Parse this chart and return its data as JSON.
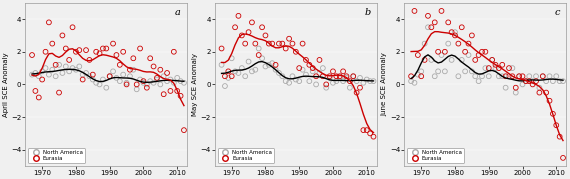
{
  "years": [
    1967,
    1968,
    1969,
    1970,
    1971,
    1972,
    1973,
    1974,
    1975,
    1976,
    1977,
    1978,
    1979,
    1980,
    1981,
    1982,
    1983,
    1984,
    1985,
    1986,
    1987,
    1988,
    1989,
    1990,
    1991,
    1992,
    1993,
    1994,
    1995,
    1996,
    1997,
    1998,
    1999,
    2000,
    2001,
    2002,
    2003,
    2004,
    2005,
    2006,
    2007,
    2008,
    2009,
    2010,
    2011,
    2012
  ],
  "april_na": [
    0.6,
    0.7,
    0.5,
    0.8,
    1.0,
    0.6,
    0.9,
    0.5,
    1.2,
    0.7,
    1.1,
    0.8,
    1.0,
    0.9,
    1.1,
    0.6,
    0.7,
    0.5,
    0.3,
    0.1,
    0.0,
    0.3,
    -0.2,
    0.5,
    0.8,
    0.4,
    0.2,
    0.6,
    0.1,
    0.5,
    0.9,
    -0.3,
    0.3,
    0.1,
    0.0,
    0.2,
    0.1,
    0.3,
    0.0,
    0.5,
    0.2,
    0.3,
    0.1,
    0.4,
    0.2,
    0.1
  ],
  "april_eu": [
    1.8,
    -0.4,
    -0.8,
    0.3,
    2.0,
    3.8,
    2.5,
    1.2,
    -0.5,
    3.0,
    2.2,
    1.5,
    3.5,
    2.0,
    2.1,
    0.3,
    2.1,
    1.5,
    0.6,
    2.0,
    1.9,
    2.2,
    2.2,
    0.5,
    2.5,
    1.8,
    1.2,
    2.0,
    0.0,
    0.9,
    1.6,
    0.0,
    2.2,
    0.2,
    -0.2,
    1.6,
    1.1,
    0.4,
    0.9,
    -0.6,
    0.7,
    -0.4,
    2.0,
    -0.4,
    -0.7,
    -2.8
  ],
  "may_na": [
    1.2,
    -0.1,
    0.4,
    1.6,
    0.8,
    0.7,
    1.0,
    0.5,
    1.4,
    0.8,
    0.9,
    2.2,
    1.6,
    1.1,
    1.2,
    1.3,
    0.9,
    0.7,
    0.5,
    0.2,
    0.1,
    0.5,
    0.3,
    0.2,
    0.9,
    0.6,
    0.2,
    0.8,
    0.0,
    0.7,
    1.0,
    -0.2,
    0.4,
    0.1,
    0.2,
    0.4,
    0.2,
    0.4,
    -0.2,
    0.5,
    0.2,
    0.4,
    0.1,
    0.3,
    0.2,
    0.2
  ],
  "may_eu": [
    2.2,
    0.5,
    0.8,
    0.5,
    3.5,
    4.2,
    3.0,
    2.5,
    3.2,
    3.8,
    2.5,
    1.8,
    3.5,
    3.0,
    2.5,
    2.5,
    1.2,
    2.5,
    2.5,
    2.2,
    2.8,
    2.5,
    2.0,
    1.0,
    2.5,
    1.5,
    1.2,
    1.0,
    0.5,
    1.5,
    0.5,
    0.0,
    0.5,
    0.8,
    0.5,
    0.5,
    0.8,
    0.5,
    0.2,
    0.5,
    -0.5,
    -0.2,
    -2.8,
    -2.8,
    -3.0,
    -3.2
  ],
  "june_na": [
    0.2,
    0.1,
    0.6,
    0.8,
    2.5,
    3.5,
    1.5,
    0.5,
    0.8,
    1.8,
    0.8,
    2.5,
    1.5,
    3.2,
    0.5,
    1.5,
    0.8,
    1.8,
    0.8,
    0.5,
    0.2,
    0.5,
    1.0,
    0.5,
    1.5,
    1.0,
    0.5,
    0.5,
    -0.2,
    0.5,
    1.0,
    -0.5,
    0.5,
    0.0,
    0.2,
    0.5,
    0.2,
    0.5,
    -0.2,
    0.5,
    0.2,
    0.5,
    0.2,
    0.5,
    0.2,
    0.2
  ],
  "june_eu": [
    0.5,
    4.5,
    1.8,
    0.5,
    1.5,
    4.2,
    3.5,
    3.8,
    2.0,
    4.5,
    2.0,
    3.8,
    3.2,
    3.0,
    2.5,
    3.5,
    2.0,
    2.5,
    3.0,
    1.5,
    1.8,
    2.0,
    2.0,
    1.0,
    1.5,
    1.2,
    1.0,
    1.2,
    0.5,
    1.0,
    0.5,
    -0.2,
    0.5,
    0.5,
    0.2,
    0.2,
    0.0,
    0.2,
    -0.5,
    0.5,
    -0.5,
    -1.0,
    -1.8,
    -2.5,
    -3.2,
    -4.5
  ],
  "panel_labels": [
    "a",
    "b",
    "c"
  ],
  "ylabels": [
    "April SCE Anomaly",
    "May SCE Anomaly",
    "June SCE Anomaly"
  ],
  "ylim": [
    -5,
    5
  ],
  "yticks": [
    -4,
    -2,
    0,
    2,
    4
  ],
  "xlim": [
    1965,
    2013
  ],
  "xticks": [
    1970,
    1980,
    1990,
    2000,
    2010
  ],
  "color_na": "#aaaaaa",
  "color_eu": "#cc0000",
  "color_line_na": "#000000",
  "color_line_eu": "#cc0000",
  "marker_size": 12,
  "line_width": 1.0,
  "smooth_sigma": 1.8,
  "background_color": "#f0f0f0"
}
